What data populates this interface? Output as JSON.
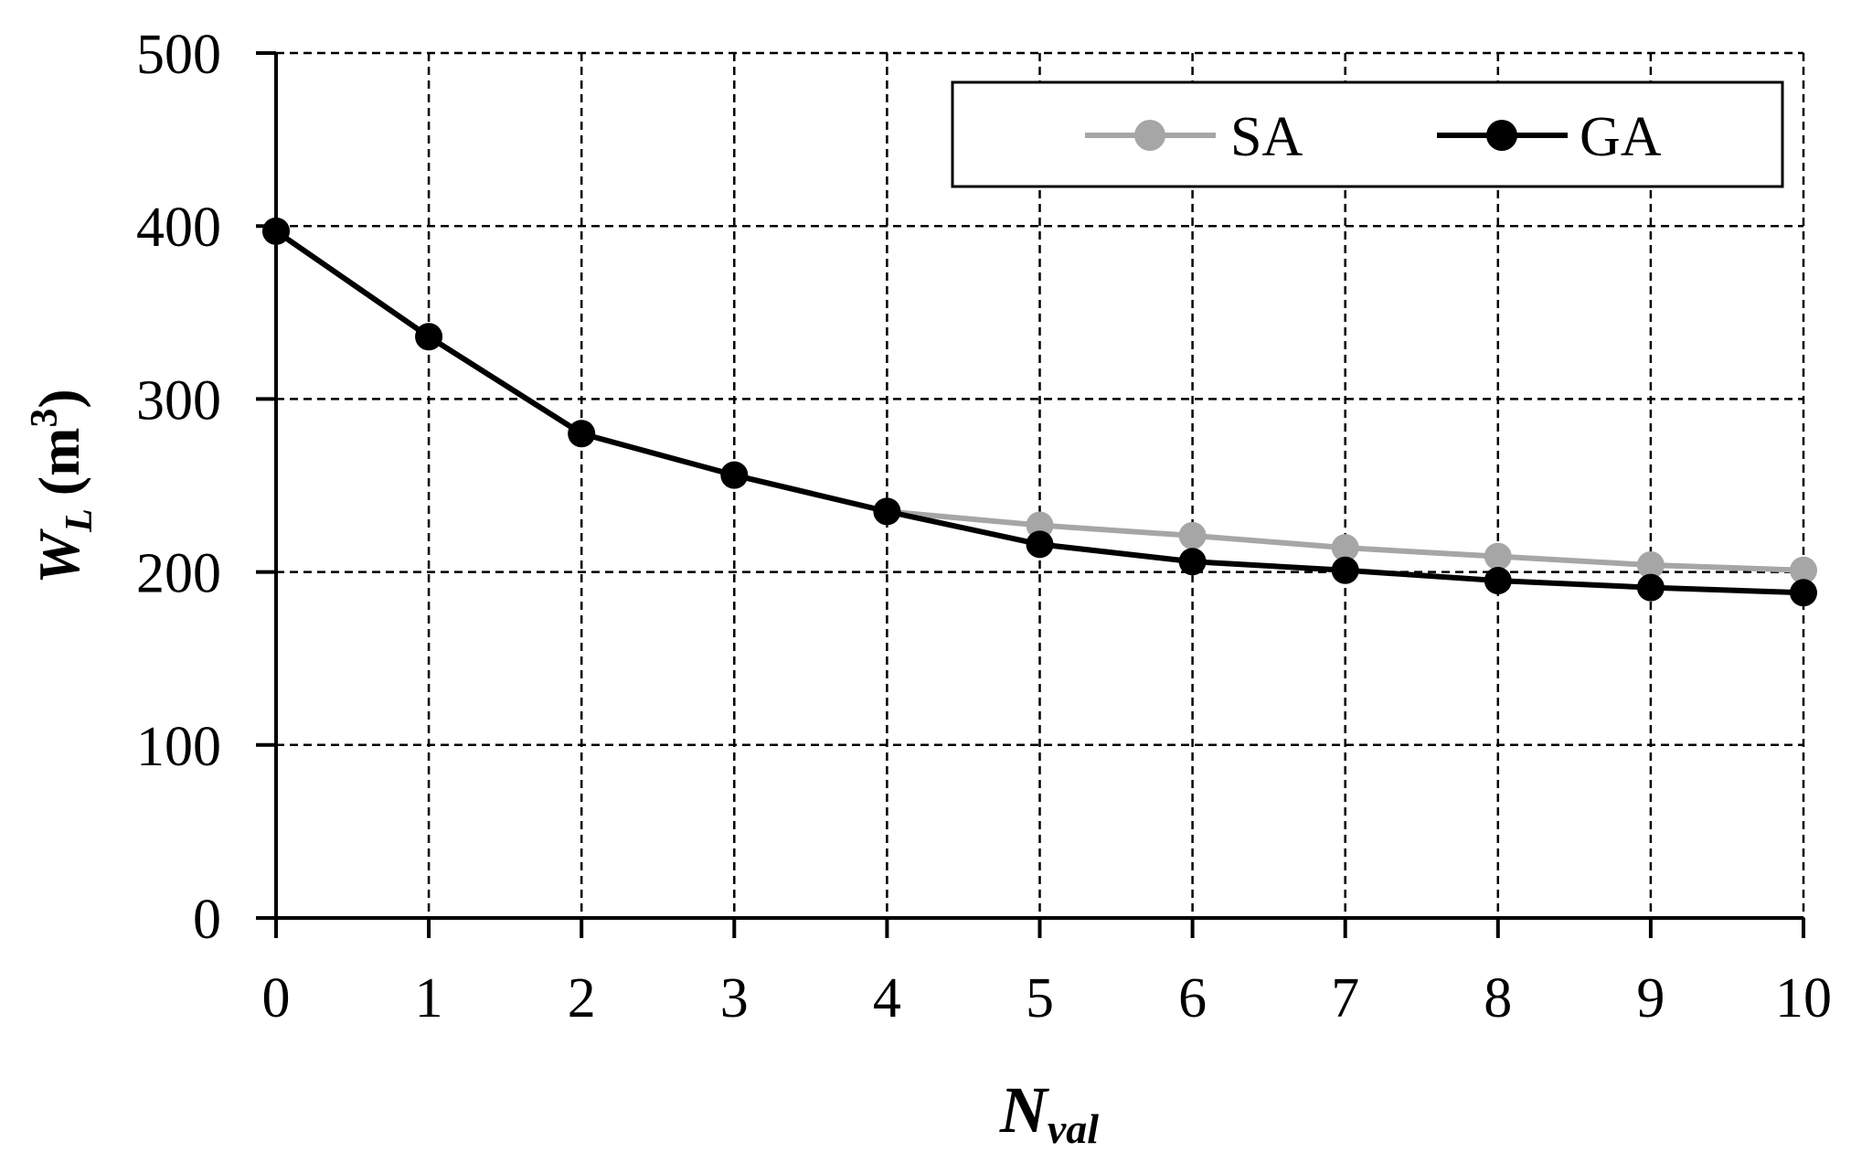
{
  "chart_data": {
    "type": "line",
    "x": [
      0,
      1,
      2,
      3,
      4,
      5,
      6,
      7,
      8,
      9,
      10
    ],
    "xlim": [
      0,
      10
    ],
    "ylim": [
      0,
      500
    ],
    "xticks": [
      "0",
      "1",
      "2",
      "3",
      "4",
      "5",
      "6",
      "7",
      "8",
      "9",
      "10"
    ],
    "yticks": [
      "0",
      "100",
      "200",
      "300",
      "400",
      "500"
    ],
    "xlabel": {
      "main": "N",
      "sub": "val"
    },
    "ylabel": {
      "main": "W",
      "sub": "L",
      "unit": "(m",
      "sup": "3",
      "close": ")"
    },
    "grid": true,
    "legend_position": "top-right",
    "series": [
      {
        "name": "SA",
        "color": "#a6a6a6",
        "values": [
          397,
          336,
          280,
          256,
          235,
          227,
          221,
          214,
          209,
          204,
          201
        ]
      },
      {
        "name": "GA",
        "color": "#000000",
        "values": [
          397,
          336,
          280,
          256,
          235,
          216,
          206,
          201,
          195,
          191,
          188
        ]
      }
    ]
  }
}
